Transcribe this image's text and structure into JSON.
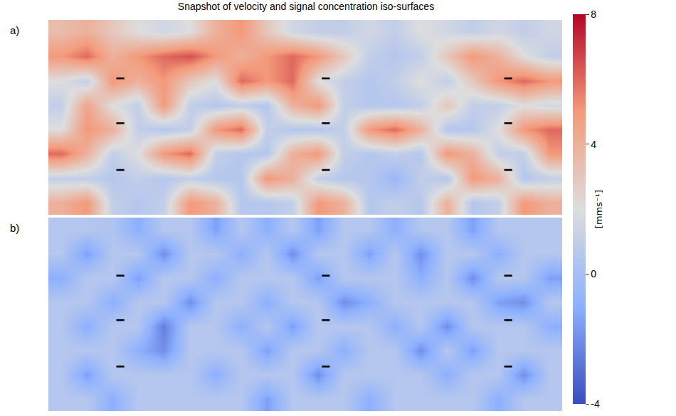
{
  "chart_data": {
    "type": "heatmap",
    "title": "Snapshot of velocity and signal concentration iso-surfaces",
    "xlim": [
      0,
      1
    ],
    "ylim": [
      0,
      1
    ],
    "tick_labels": false,
    "grid": false,
    "colorbar": {
      "range": [
        -4,
        8
      ],
      "ticks": [
        -4,
        0,
        4,
        8
      ],
      "title": "[mms⁻¹]"
    },
    "x": [
      0.025,
      0.075,
      0.125,
      0.175,
      0.225,
      0.275,
      0.325,
      0.375,
      0.425,
      0.475,
      0.525,
      0.575,
      0.625,
      0.675,
      0.725,
      0.775,
      0.825,
      0.875,
      0.925,
      0.975
    ],
    "y": [
      0.0625,
      0.1875,
      0.3125,
      0.4375,
      0.5625,
      0.6875,
      0.8125,
      0.9375
    ],
    "panels": [
      {
        "label": "a)",
        "z": [
          [
            4,
            5,
            1,
            0.5,
            1,
            5,
            4,
            0.5,
            0.5,
            1,
            5,
            4,
            0.5,
            1,
            0.5,
            4,
            0.5,
            1,
            5,
            4
          ],
          [
            1,
            1,
            0.5,
            1,
            0.5,
            1,
            0.5,
            0.5,
            5,
            4,
            1,
            0.5,
            0.5,
            -0.5,
            1,
            0.5,
            5,
            4,
            0.5,
            1
          ],
          [
            6,
            4,
            1,
            2,
            5,
            6,
            1,
            0.5,
            0.5,
            4,
            5,
            1,
            0.5,
            1,
            0.5,
            5,
            4,
            1,
            1,
            5
          ],
          [
            2,
            5,
            4,
            1,
            0.5,
            1,
            5,
            6,
            1,
            0.5,
            0.5,
            1,
            5,
            6,
            4,
            0.5,
            0.5,
            2,
            5,
            6
          ],
          [
            1,
            4.5,
            2,
            1,
            5,
            1,
            0.5,
            1,
            0.5,
            4,
            5,
            1,
            0.5,
            0.5,
            1,
            3,
            1,
            1,
            2,
            1.5
          ],
          [
            2,
            1,
            5,
            4,
            5,
            3,
            2,
            6,
            5,
            6,
            2,
            1,
            0.5,
            1,
            2,
            1,
            3,
            5,
            6,
            5
          ],
          [
            5,
            6,
            4,
            5,
            6,
            6.5,
            5,
            4,
            5,
            6,
            5,
            3,
            1,
            0.5,
            1,
            3,
            5,
            4,
            2,
            1
          ],
          [
            3.5,
            4,
            3,
            2,
            1.5,
            2,
            4,
            5,
            3,
            1.5,
            1,
            1,
            1.5,
            1,
            2,
            1.5,
            1,
            1.5,
            1,
            1.5
          ]
        ],
        "iso_surfaces": {
          "x": [
            0.14,
            0.54,
            0.895,
            0.14,
            0.54,
            0.895,
            0.14,
            0.54,
            0.895
          ],
          "y": [
            0.7,
            0.7,
            0.7,
            0.47,
            0.47,
            0.47,
            0.23,
            0.23,
            0.23
          ],
          "marker": "dash",
          "color": "#000000"
        }
      },
      {
        "label": "b)",
        "z": [
          [
            0.5,
            0.5,
            -1,
            0.5,
            0.5,
            0.5,
            0.5,
            0.5,
            -1.5,
            0.5,
            0.5,
            0.5,
            -1,
            0.5,
            0.5,
            0.5,
            0.5,
            -1,
            0.5,
            0.5
          ],
          [
            0.5,
            -1.5,
            0.5,
            0.5,
            0.5,
            0.5,
            -1,
            0.5,
            0.5,
            0.5,
            -2,
            0.5,
            0.5,
            0.5,
            0.5,
            -1,
            0.5,
            0.5,
            -2,
            0.5
          ],
          [
            0.5,
            0.5,
            0.5,
            -1,
            -2,
            0.5,
            0.5,
            0.5,
            -1.5,
            0.5,
            0.5,
            -1,
            0.5,
            0.5,
            -2,
            0.5,
            -1.5,
            0.5,
            0.5,
            0.5
          ],
          [
            0.5,
            -1,
            0.5,
            0.5,
            -2.5,
            0.5,
            0.5,
            -1,
            0.5,
            -1.5,
            0.5,
            0.5,
            0.5,
            -1,
            0.5,
            -2,
            0.5,
            0.5,
            0.5,
            -1
          ],
          [
            0.5,
            0.5,
            -1,
            0.5,
            0.5,
            -2,
            0.5,
            0.5,
            -1,
            0.5,
            0.5,
            -2,
            -1,
            0.5,
            0.5,
            0.5,
            0.5,
            -1.5,
            -2,
            0.5
          ],
          [
            -1,
            0.5,
            0.5,
            -1.5,
            0.5,
            0.5,
            -1,
            0.5,
            0.5,
            0.5,
            -1.5,
            0.5,
            0.5,
            0.5,
            -1,
            0.5,
            -2,
            0.5,
            0.5,
            -1.5
          ],
          [
            0.5,
            -1.5,
            0.5,
            0.5,
            -2,
            0.5,
            0.5,
            -1,
            0.5,
            -2,
            0.5,
            0.5,
            -1.5,
            0.5,
            -2,
            0.5,
            0.5,
            -1,
            0.5,
            0.5
          ],
          [
            0.5,
            0.5,
            0.3,
            -1,
            0.5,
            0.5,
            -1.5,
            0.5,
            -1,
            0.5,
            -1.5,
            0.5,
            0.5,
            -1,
            0.5,
            0.5,
            -1.5,
            0.5,
            0.5,
            0.5
          ]
        ],
        "iso_surfaces": {
          "x": [
            0.14,
            0.54,
            0.895,
            0.14,
            0.54,
            0.895,
            0.14,
            0.54,
            0.895
          ],
          "y": [
            0.7,
            0.7,
            0.7,
            0.47,
            0.47,
            0.47,
            0.23,
            0.23,
            0.23
          ],
          "marker": "dash",
          "color": "#000000"
        }
      }
    ]
  }
}
